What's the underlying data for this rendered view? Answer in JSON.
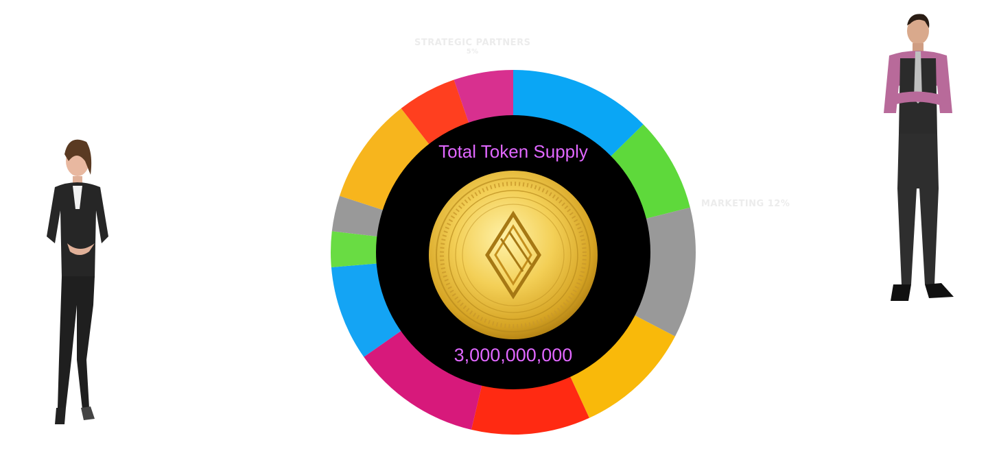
{
  "chart_data": {
    "type": "pie",
    "title": "Total Token Supply",
    "total": "3,000,000,000",
    "slices": [
      {
        "value": 12,
        "color": "#0aa6f5"
      },
      {
        "value": 8,
        "color": "#5ed93b"
      },
      {
        "value": 11,
        "color": "#999999"
      },
      {
        "value": 10,
        "color": "#f9b90a"
      },
      {
        "value": 10,
        "color": "#ff2a12"
      },
      {
        "value": 11,
        "color": "#d7197b"
      },
      {
        "value": 8,
        "color": "#14a4f4"
      },
      {
        "value": 3,
        "color": "#69dc43"
      },
      {
        "value": 3,
        "color": "#999999"
      },
      {
        "value": 9,
        "color": "#f7b51d"
      },
      {
        "value": 5,
        "color": "#ff3f1f"
      },
      {
        "value": 5,
        "color": "#d8308f"
      }
    ]
  },
  "labels": {
    "strategic_partners": "STRATEGIC PARTNERS",
    "strategic_partners_pct": "5%",
    "marketing": "MARKETING 12%"
  },
  "figures": {
    "left": "woman-figure",
    "right": "man-figure"
  }
}
